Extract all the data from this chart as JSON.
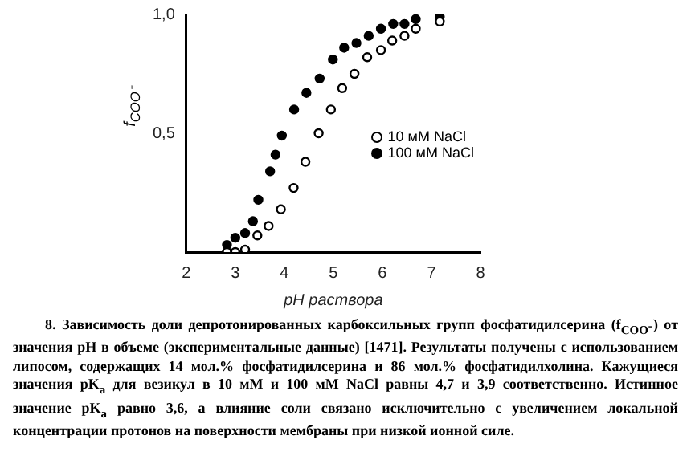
{
  "chart_data": {
    "type": "scatter",
    "xlabel": "pH раствора",
    "ylabel": "f$_{COO⁻}$",
    "xlim": [
      2,
      8
    ],
    "ylim": [
      0,
      1
    ],
    "xticks": [
      2,
      3,
      4,
      5,
      6,
      7,
      8
    ],
    "yticks": [
      {
        "value": 0.5,
        "label": "0,5"
      },
      {
        "value": 1,
        "label": "1,0"
      }
    ],
    "grid": false,
    "legend": "right",
    "marker": "circle",
    "series": [
      {
        "name": "10 мМ NaCl",
        "color": "#000000",
        "x": [
          2.83,
          3.0,
          3.2,
          3.45,
          3.68,
          3.93,
          4.19,
          4.43,
          4.7,
          4.95,
          5.18,
          5.43,
          5.69,
          5.97,
          6.2,
          6.45,
          6.68,
          7.17
        ],
        "values": [
          0,
          0,
          0.01,
          0.07,
          0.11,
          0.18,
          0.27,
          0.38,
          0.5,
          0.6,
          0.69,
          0.75,
          0.82,
          0.85,
          0.89,
          0.91,
          0.94,
          0.97
        ]
      },
      {
        "name": "100 мМ NaCl",
        "color": "#000000",
        "x": [
          2.83,
          3.0,
          3.2,
          3.36,
          3.47,
          3.71,
          3.82,
          3.95,
          4.2,
          4.45,
          4.72,
          4.99,
          5.22,
          5.47,
          5.72,
          5.97,
          6.22,
          6.45,
          6.68,
          7.17
        ],
        "values": [
          0.03,
          0.06,
          0.08,
          0.13,
          0.22,
          0.34,
          0.41,
          0.49,
          0.6,
          0.67,
          0.73,
          0.81,
          0.86,
          0.88,
          0.91,
          0.94,
          0.96,
          0.96,
          0.98,
          0.99
        ]
      }
    ],
    "annotations": [
      "8. Зависимость доли депротонированных карбоксильных групп фосфатидилсерина (f$_{COO⁻}$) от значения pH в объеме (экспериментальные данные) [1471]. Результаты получены с использованием липосом, содержащих 14 мол.% фосфатидилсерина и 86 мол.% фосфатидилхолина. Кажущиеся значения pK$_{a}$ для везикул в 10 мМ и 100 мМ NaCl равны 4,7 и 3,9 соответственно. Истинное значение pK$_{a}$ равно 3,6, а влияние соли связано исключительно с увеличением локальной концентрации протонов на поверхности мембраны при низкой ионной силе."
    ]
  }
}
